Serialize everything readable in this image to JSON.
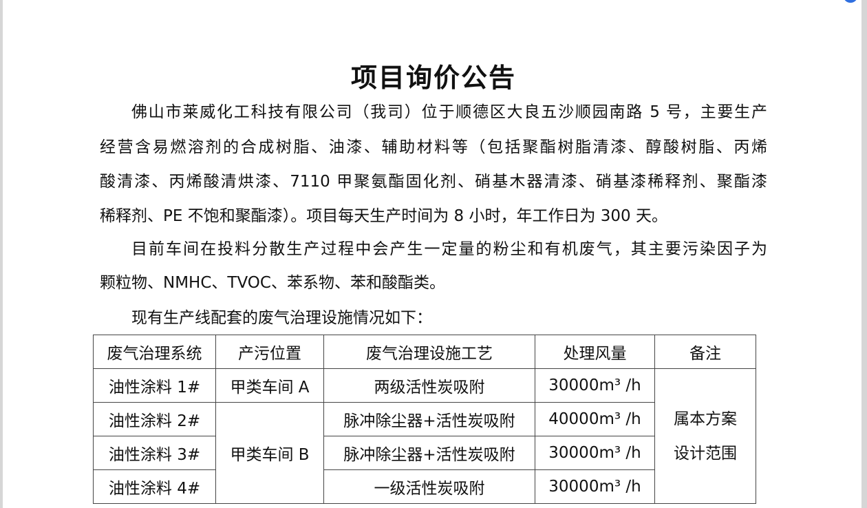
{
  "title": "项目询价公告",
  "paragraphs": [
    {
      "lines": [
        "佛山市莱威化工科技有限公司（我司）位于顺德区大良五沙顺园南路 5 号，主要生产",
        "经营含易燃溶剂的合成树脂、油漆、辅助材料等（包括聚酯树脂清漆、醇酸树脂、丙烯",
        "酸清漆、丙烯酸清烘漆、7110 甲聚氨酯固化剂、硝基木器清漆、硝基漆稀释剂、聚酯漆",
        "稀释剂、PE 不饱和聚酯漆）。项目每天生产时间为 8 小时，年工作日为 300 天。"
      ]
    },
    {
      "lines": [
        "目前车间在投料分散生产过程中会产生一定量的粉尘和有机废气，其主要污染因子为",
        "颗粒物、NMHC、TVOC、苯系物、苯和酸酯类。"
      ]
    },
    {
      "lines": [
        "现有生产线配套的废气治理设施情况如下："
      ]
    }
  ],
  "table": {
    "headers": [
      "废气治理系统",
      "产污位置",
      "废气治理设施工艺",
      "处理风量",
      "备注"
    ],
    "rows": [
      {
        "system": "油性涂料  1#",
        "location": "甲类车间 A",
        "process": "两级活性炭吸附",
        "flow": "30000m³ /h"
      },
      {
        "system": "油性涂料  2#",
        "location": "甲类车间 B",
        "process": "脉冲除尘器+活性炭吸附",
        "flow": "40000m³ /h"
      },
      {
        "system": "油性涂料  3#",
        "process": "脉冲除尘器+活性炭吸附",
        "flow": "30000m³ /h"
      },
      {
        "system": "油性涂料  4#",
        "process": "一级活性炭吸附",
        "flow": "30000m³ /h"
      }
    ],
    "remark_line1": "属本方案",
    "remark_line2": "设计范围"
  }
}
